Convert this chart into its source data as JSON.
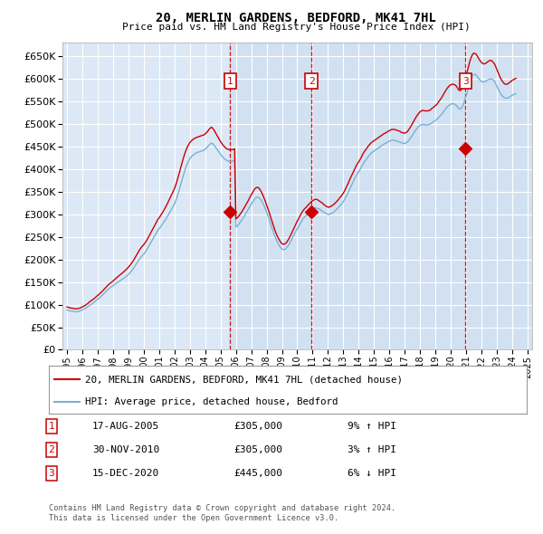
{
  "title": "20, MERLIN GARDENS, BEDFORD, MK41 7HL",
  "subtitle": "Price paid vs. HM Land Registry's House Price Index (HPI)",
  "background_color": "#ffffff",
  "plot_bg_color": "#dce8f5",
  "grid_color": "#ffffff",
  "ylim": [
    0,
    680000
  ],
  "yticks": [
    0,
    50000,
    100000,
    150000,
    200000,
    250000,
    300000,
    350000,
    400000,
    450000,
    500000,
    550000,
    600000,
    650000
  ],
  "legend_line1": "20, MERLIN GARDENS, BEDFORD, MK41 7HL (detached house)",
  "legend_line2": "HPI: Average price, detached house, Bedford",
  "sale_color": "#cc0000",
  "hpi_color": "#7ab0d4",
  "purchases": [
    {
      "num": 1,
      "date": "17-AUG-2005",
      "price": 305000,
      "pct": "9%",
      "dir": "↑"
    },
    {
      "num": 2,
      "date": "30-NOV-2010",
      "price": 305000,
      "pct": "3%",
      "dir": "↑"
    },
    {
      "num": 3,
      "date": "15-DEC-2020",
      "price": 445000,
      "pct": "6%",
      "dir": "↓"
    }
  ],
  "purchase_dates_decimal": [
    2005.63,
    2010.92,
    2020.96
  ],
  "purchase_prices": [
    305000,
    305000,
    445000
  ],
  "footer1": "Contains HM Land Registry data © Crown copyright and database right 2024.",
  "footer2": "This data is licensed under the Open Government Licence v3.0.",
  "hpi_dates": [
    1995.0,
    1995.083,
    1995.167,
    1995.25,
    1995.333,
    1995.417,
    1995.5,
    1995.583,
    1995.667,
    1995.75,
    1995.833,
    1995.917,
    1996.0,
    1996.083,
    1996.167,
    1996.25,
    1996.333,
    1996.417,
    1996.5,
    1996.583,
    1996.667,
    1996.75,
    1996.833,
    1996.917,
    1997.0,
    1997.083,
    1997.167,
    1997.25,
    1997.333,
    1997.417,
    1997.5,
    1997.583,
    1997.667,
    1997.75,
    1997.833,
    1997.917,
    1998.0,
    1998.083,
    1998.167,
    1998.25,
    1998.333,
    1998.417,
    1998.5,
    1998.583,
    1998.667,
    1998.75,
    1998.833,
    1998.917,
    1999.0,
    1999.083,
    1999.167,
    1999.25,
    1999.333,
    1999.417,
    1999.5,
    1999.583,
    1999.667,
    1999.75,
    1999.833,
    1999.917,
    2000.0,
    2000.083,
    2000.167,
    2000.25,
    2000.333,
    2000.417,
    2000.5,
    2000.583,
    2000.667,
    2000.75,
    2000.833,
    2000.917,
    2001.0,
    2001.083,
    2001.167,
    2001.25,
    2001.333,
    2001.417,
    2001.5,
    2001.583,
    2001.667,
    2001.75,
    2001.833,
    2001.917,
    2002.0,
    2002.083,
    2002.167,
    2002.25,
    2002.333,
    2002.417,
    2002.5,
    2002.583,
    2002.667,
    2002.75,
    2002.833,
    2002.917,
    2003.0,
    2003.083,
    2003.167,
    2003.25,
    2003.333,
    2003.417,
    2003.5,
    2003.583,
    2003.667,
    2003.75,
    2003.833,
    2003.917,
    2004.0,
    2004.083,
    2004.167,
    2004.25,
    2004.333,
    2004.417,
    2004.5,
    2004.583,
    2004.667,
    2004.75,
    2004.833,
    2004.917,
    2005.0,
    2005.083,
    2005.167,
    2005.25,
    2005.333,
    2005.417,
    2005.5,
    2005.583,
    2005.667,
    2005.75,
    2005.833,
    2005.917,
    2006.0,
    2006.083,
    2006.167,
    2006.25,
    2006.333,
    2006.417,
    2006.5,
    2006.583,
    2006.667,
    2006.75,
    2006.833,
    2006.917,
    2007.0,
    2007.083,
    2007.167,
    2007.25,
    2007.333,
    2007.417,
    2007.5,
    2007.583,
    2007.667,
    2007.75,
    2007.833,
    2007.917,
    2008.0,
    2008.083,
    2008.167,
    2008.25,
    2008.333,
    2008.417,
    2008.5,
    2008.583,
    2008.667,
    2008.75,
    2008.833,
    2008.917,
    2009.0,
    2009.083,
    2009.167,
    2009.25,
    2009.333,
    2009.417,
    2009.5,
    2009.583,
    2009.667,
    2009.75,
    2009.833,
    2009.917,
    2010.0,
    2010.083,
    2010.167,
    2010.25,
    2010.333,
    2010.417,
    2010.5,
    2010.583,
    2010.667,
    2010.75,
    2010.833,
    2010.917,
    2011.0,
    2011.083,
    2011.167,
    2011.25,
    2011.333,
    2011.417,
    2011.5,
    2011.583,
    2011.667,
    2011.75,
    2011.833,
    2011.917,
    2012.0,
    2012.083,
    2012.167,
    2012.25,
    2012.333,
    2012.417,
    2012.5,
    2012.583,
    2012.667,
    2012.75,
    2012.833,
    2012.917,
    2013.0,
    2013.083,
    2013.167,
    2013.25,
    2013.333,
    2013.417,
    2013.5,
    2013.583,
    2013.667,
    2013.75,
    2013.833,
    2013.917,
    2014.0,
    2014.083,
    2014.167,
    2014.25,
    2014.333,
    2014.417,
    2014.5,
    2014.583,
    2014.667,
    2014.75,
    2014.833,
    2014.917,
    2015.0,
    2015.083,
    2015.167,
    2015.25,
    2015.333,
    2015.417,
    2015.5,
    2015.583,
    2015.667,
    2015.75,
    2015.833,
    2015.917,
    2016.0,
    2016.083,
    2016.167,
    2016.25,
    2016.333,
    2016.417,
    2016.5,
    2016.583,
    2016.667,
    2016.75,
    2016.833,
    2016.917,
    2017.0,
    2017.083,
    2017.167,
    2017.25,
    2017.333,
    2017.417,
    2017.5,
    2017.583,
    2017.667,
    2017.75,
    2017.833,
    2017.917,
    2018.0,
    2018.083,
    2018.167,
    2018.25,
    2018.333,
    2018.417,
    2018.5,
    2018.583,
    2018.667,
    2018.75,
    2018.833,
    2018.917,
    2019.0,
    2019.083,
    2019.167,
    2019.25,
    2019.333,
    2019.417,
    2019.5,
    2019.583,
    2019.667,
    2019.75,
    2019.833,
    2019.917,
    2020.0,
    2020.083,
    2020.167,
    2020.25,
    2020.333,
    2020.417,
    2020.5,
    2020.583,
    2020.667,
    2020.75,
    2020.833,
    2020.917,
    2021.0,
    2021.083,
    2021.167,
    2021.25,
    2021.333,
    2021.417,
    2021.5,
    2021.583,
    2021.667,
    2021.75,
    2021.833,
    2021.917,
    2022.0,
    2022.083,
    2022.167,
    2022.25,
    2022.333,
    2022.417,
    2022.5,
    2022.583,
    2022.667,
    2022.75,
    2022.833,
    2022.917,
    2023.0,
    2023.083,
    2023.167,
    2023.25,
    2023.333,
    2023.417,
    2023.5,
    2023.583,
    2023.667,
    2023.75,
    2023.833,
    2023.917,
    2024.0,
    2024.083,
    2024.167,
    2024.25
  ],
  "hpi_values": [
    88000,
    87000,
    86500,
    86000,
    85500,
    85000,
    84500,
    84000,
    84500,
    85000,
    86000,
    87000,
    88500,
    90000,
    91500,
    93000,
    95000,
    97000,
    99000,
    101000,
    103000,
    105000,
    107500,
    110000,
    112000,
    114500,
    117000,
    119500,
    122000,
    125000,
    128000,
    131000,
    133500,
    136000,
    138000,
    140000,
    142000,
    144000,
    146000,
    148000,
    150000,
    152000,
    154000,
    156000,
    158000,
    160000,
    162000,
    164000,
    167000,
    170000,
    173500,
    177000,
    181000,
    185000,
    189500,
    194000,
    198000,
    202000,
    206000,
    209000,
    212000,
    216000,
    220000,
    225000,
    230000,
    235000,
    240000,
    245000,
    250000,
    255000,
    260000,
    265000,
    268000,
    272000,
    276000,
    280000,
    284000,
    288000,
    293000,
    298000,
    303000,
    308000,
    313000,
    318000,
    323000,
    330000,
    338000,
    347000,
    357000,
    367000,
    377000,
    387000,
    396000,
    405000,
    412000,
    418000,
    423000,
    427000,
    430000,
    432000,
    434000,
    436000,
    437000,
    438000,
    439000,
    440000,
    441000,
    442000,
    444000,
    447000,
    450000,
    453000,
    456000,
    458000,
    456000,
    453000,
    449000,
    445000,
    441000,
    437000,
    433000,
    429000,
    426000,
    423000,
    421000,
    419000,
    418000,
    417000,
    417000,
    418000,
    419000,
    420000,
    272000,
    274000,
    277000,
    281000,
    285000,
    289000,
    293000,
    298000,
    303000,
    308000,
    313000,
    318000,
    322000,
    327000,
    331000,
    335000,
    337000,
    338000,
    337000,
    334000,
    330000,
    325000,
    319000,
    312000,
    305000,
    297000,
    288000,
    280000,
    271000,
    263000,
    255000,
    248000,
    241000,
    235000,
    230000,
    226000,
    223000,
    222000,
    222000,
    224000,
    227000,
    231000,
    236000,
    241000,
    247000,
    253000,
    258000,
    263000,
    268000,
    273000,
    278000,
    283000,
    288000,
    292000,
    295000,
    298000,
    301000,
    304000,
    307000,
    310000,
    312000,
    313000,
    314000,
    314000,
    313000,
    312000,
    310000,
    308000,
    306000,
    304000,
    303000,
    301000,
    300000,
    300000,
    301000,
    302000,
    304000,
    306000,
    309000,
    312000,
    315000,
    318000,
    321000,
    324000,
    328000,
    333000,
    338000,
    344000,
    350000,
    356000,
    362000,
    368000,
    374000,
    380000,
    385000,
    390000,
    394000,
    399000,
    404000,
    409000,
    414000,
    418000,
    422000,
    426000,
    430000,
    433000,
    436000,
    438000,
    440000,
    442000,
    444000,
    446000,
    448000,
    450000,
    452000,
    454000,
    456000,
    457000,
    459000,
    461000,
    462000,
    463000,
    464000,
    464000,
    464000,
    463000,
    462000,
    461000,
    460000,
    459000,
    458000,
    457000,
    457000,
    458000,
    460000,
    463000,
    467000,
    471000,
    475000,
    480000,
    484000,
    488000,
    492000,
    495000,
    497000,
    498000,
    499000,
    499000,
    498000,
    498000,
    498000,
    499000,
    500000,
    502000,
    504000,
    506000,
    508000,
    510000,
    513000,
    516000,
    519000,
    522000,
    526000,
    530000,
    534000,
    537000,
    540000,
    542000,
    544000,
    545000,
    545000,
    544000,
    542000,
    539000,
    535000,
    533000,
    534000,
    538000,
    545000,
    553000,
    562000,
    572000,
    583000,
    593000,
    601000,
    607000,
    610000,
    610000,
    608000,
    604000,
    600000,
    597000,
    594000,
    593000,
    593000,
    594000,
    596000,
    598000,
    599000,
    600000,
    600000,
    598000,
    595000,
    590000,
    584000,
    578000,
    572000,
    567000,
    563000,
    560000,
    558000,
    557000,
    557000,
    558000,
    560000,
    562000,
    564000,
    565000,
    566000,
    567000
  ],
  "sale_hpi_values": [
    95000,
    94000,
    93000,
    92500,
    92000,
    91500,
    91000,
    90500,
    91000,
    91500,
    92500,
    93500,
    95000,
    96500,
    98000,
    100000,
    102000,
    104500,
    107000,
    109000,
    111000,
    113000,
    115500,
    118000,
    120500,
    123000,
    125500,
    128000,
    131000,
    134000,
    137000,
    140000,
    143000,
    145500,
    148000,
    150000,
    152500,
    155000,
    157500,
    160000,
    162500,
    165000,
    167000,
    169500,
    172000,
    174500,
    177000,
    180000,
    183000,
    186500,
    190000,
    194000,
    198500,
    203000,
    208000,
    213000,
    218000,
    222500,
    226500,
    230000,
    233000,
    237000,
    241000,
    246000,
    251000,
    256500,
    262000,
    267000,
    272500,
    278000,
    283000,
    289000,
    292000,
    296500,
    301000,
    305500,
    310500,
    315500,
    321000,
    327000,
    333000,
    339000,
    345000,
    351000,
    357000,
    365000,
    374000,
    384000,
    394000,
    405000,
    415000,
    425000,
    434000,
    442000,
    449000,
    454000,
    459000,
    462000,
    465000,
    467000,
    468500,
    470000,
    471000,
    472000,
    473000,
    474000,
    475000,
    476000,
    478000,
    481000,
    484000,
    488000,
    491000,
    493000,
    490000,
    486000,
    481000,
    476000,
    471000,
    466000,
    461000,
    457000,
    453000,
    450000,
    447000,
    445000,
    444000,
    443000,
    443000,
    443000,
    444000,
    445000,
    290000,
    292000,
    295000,
    299000,
    303000,
    307000,
    312000,
    317000,
    322000,
    327000,
    332000,
    338000,
    343000,
    348000,
    353000,
    357000,
    359000,
    360000,
    358000,
    354000,
    349000,
    343000,
    336000,
    329000,
    321000,
    313000,
    304000,
    295000,
    286000,
    277000,
    269000,
    261000,
    254000,
    248000,
    243000,
    238000,
    235000,
    234000,
    234000,
    236000,
    239000,
    244000,
    249000,
    255000,
    261000,
    267000,
    273000,
    279000,
    285000,
    290000,
    296000,
    301000,
    306000,
    310000,
    313000,
    316000,
    319000,
    322000,
    325000,
    328000,
    330000,
    332000,
    333000,
    333000,
    332000,
    330000,
    328000,
    326000,
    324000,
    321000,
    319000,
    317000,
    316000,
    316000,
    317000,
    319000,
    321000,
    323000,
    326000,
    329000,
    332000,
    336000,
    339000,
    343000,
    347000,
    352000,
    358000,
    364000,
    370000,
    377000,
    383000,
    389000,
    395000,
    401000,
    407000,
    412000,
    416000,
    421000,
    426000,
    432000,
    437000,
    441000,
    445000,
    449000,
    453000,
    456000,
    459000,
    461000,
    463000,
    465000,
    467000,
    469000,
    471000,
    473000,
    475000,
    477000,
    479000,
    480000,
    482000,
    484000,
    485000,
    487000,
    488000,
    488000,
    488000,
    487000,
    486000,
    485000,
    484000,
    482000,
    481000,
    480000,
    480000,
    481000,
    483000,
    487000,
    491000,
    496000,
    501000,
    506000,
    511000,
    516000,
    520000,
    524000,
    527000,
    529000,
    530000,
    530000,
    529000,
    529000,
    529000,
    530000,
    531000,
    534000,
    536000,
    538000,
    541000,
    543000,
    547000,
    551000,
    555000,
    559000,
    564000,
    569000,
    574000,
    578000,
    582000,
    585000,
    587000,
    588000,
    588000,
    587000,
    585000,
    581000,
    576000,
    574000,
    575000,
    580000,
    588000,
    597000,
    607000,
    618000,
    629000,
    640000,
    648000,
    654000,
    657000,
    656000,
    654000,
    649000,
    644000,
    640000,
    636000,
    634000,
    633000,
    634000,
    636000,
    638000,
    640000,
    641000,
    640000,
    637000,
    634000,
    628000,
    621000,
    614000,
    607000,
    601000,
    596000,
    592000,
    589000,
    588000,
    588000,
    590000,
    592000,
    594000,
    597000,
    598000,
    600000,
    601000
  ],
  "xlim": [
    1994.7,
    2025.3
  ],
  "xticks": [
    1995,
    1996,
    1997,
    1998,
    1999,
    2000,
    2001,
    2002,
    2003,
    2004,
    2005,
    2006,
    2007,
    2008,
    2009,
    2010,
    2011,
    2012,
    2013,
    2014,
    2015,
    2016,
    2017,
    2018,
    2019,
    2020,
    2021,
    2022,
    2023,
    2024,
    2025
  ]
}
